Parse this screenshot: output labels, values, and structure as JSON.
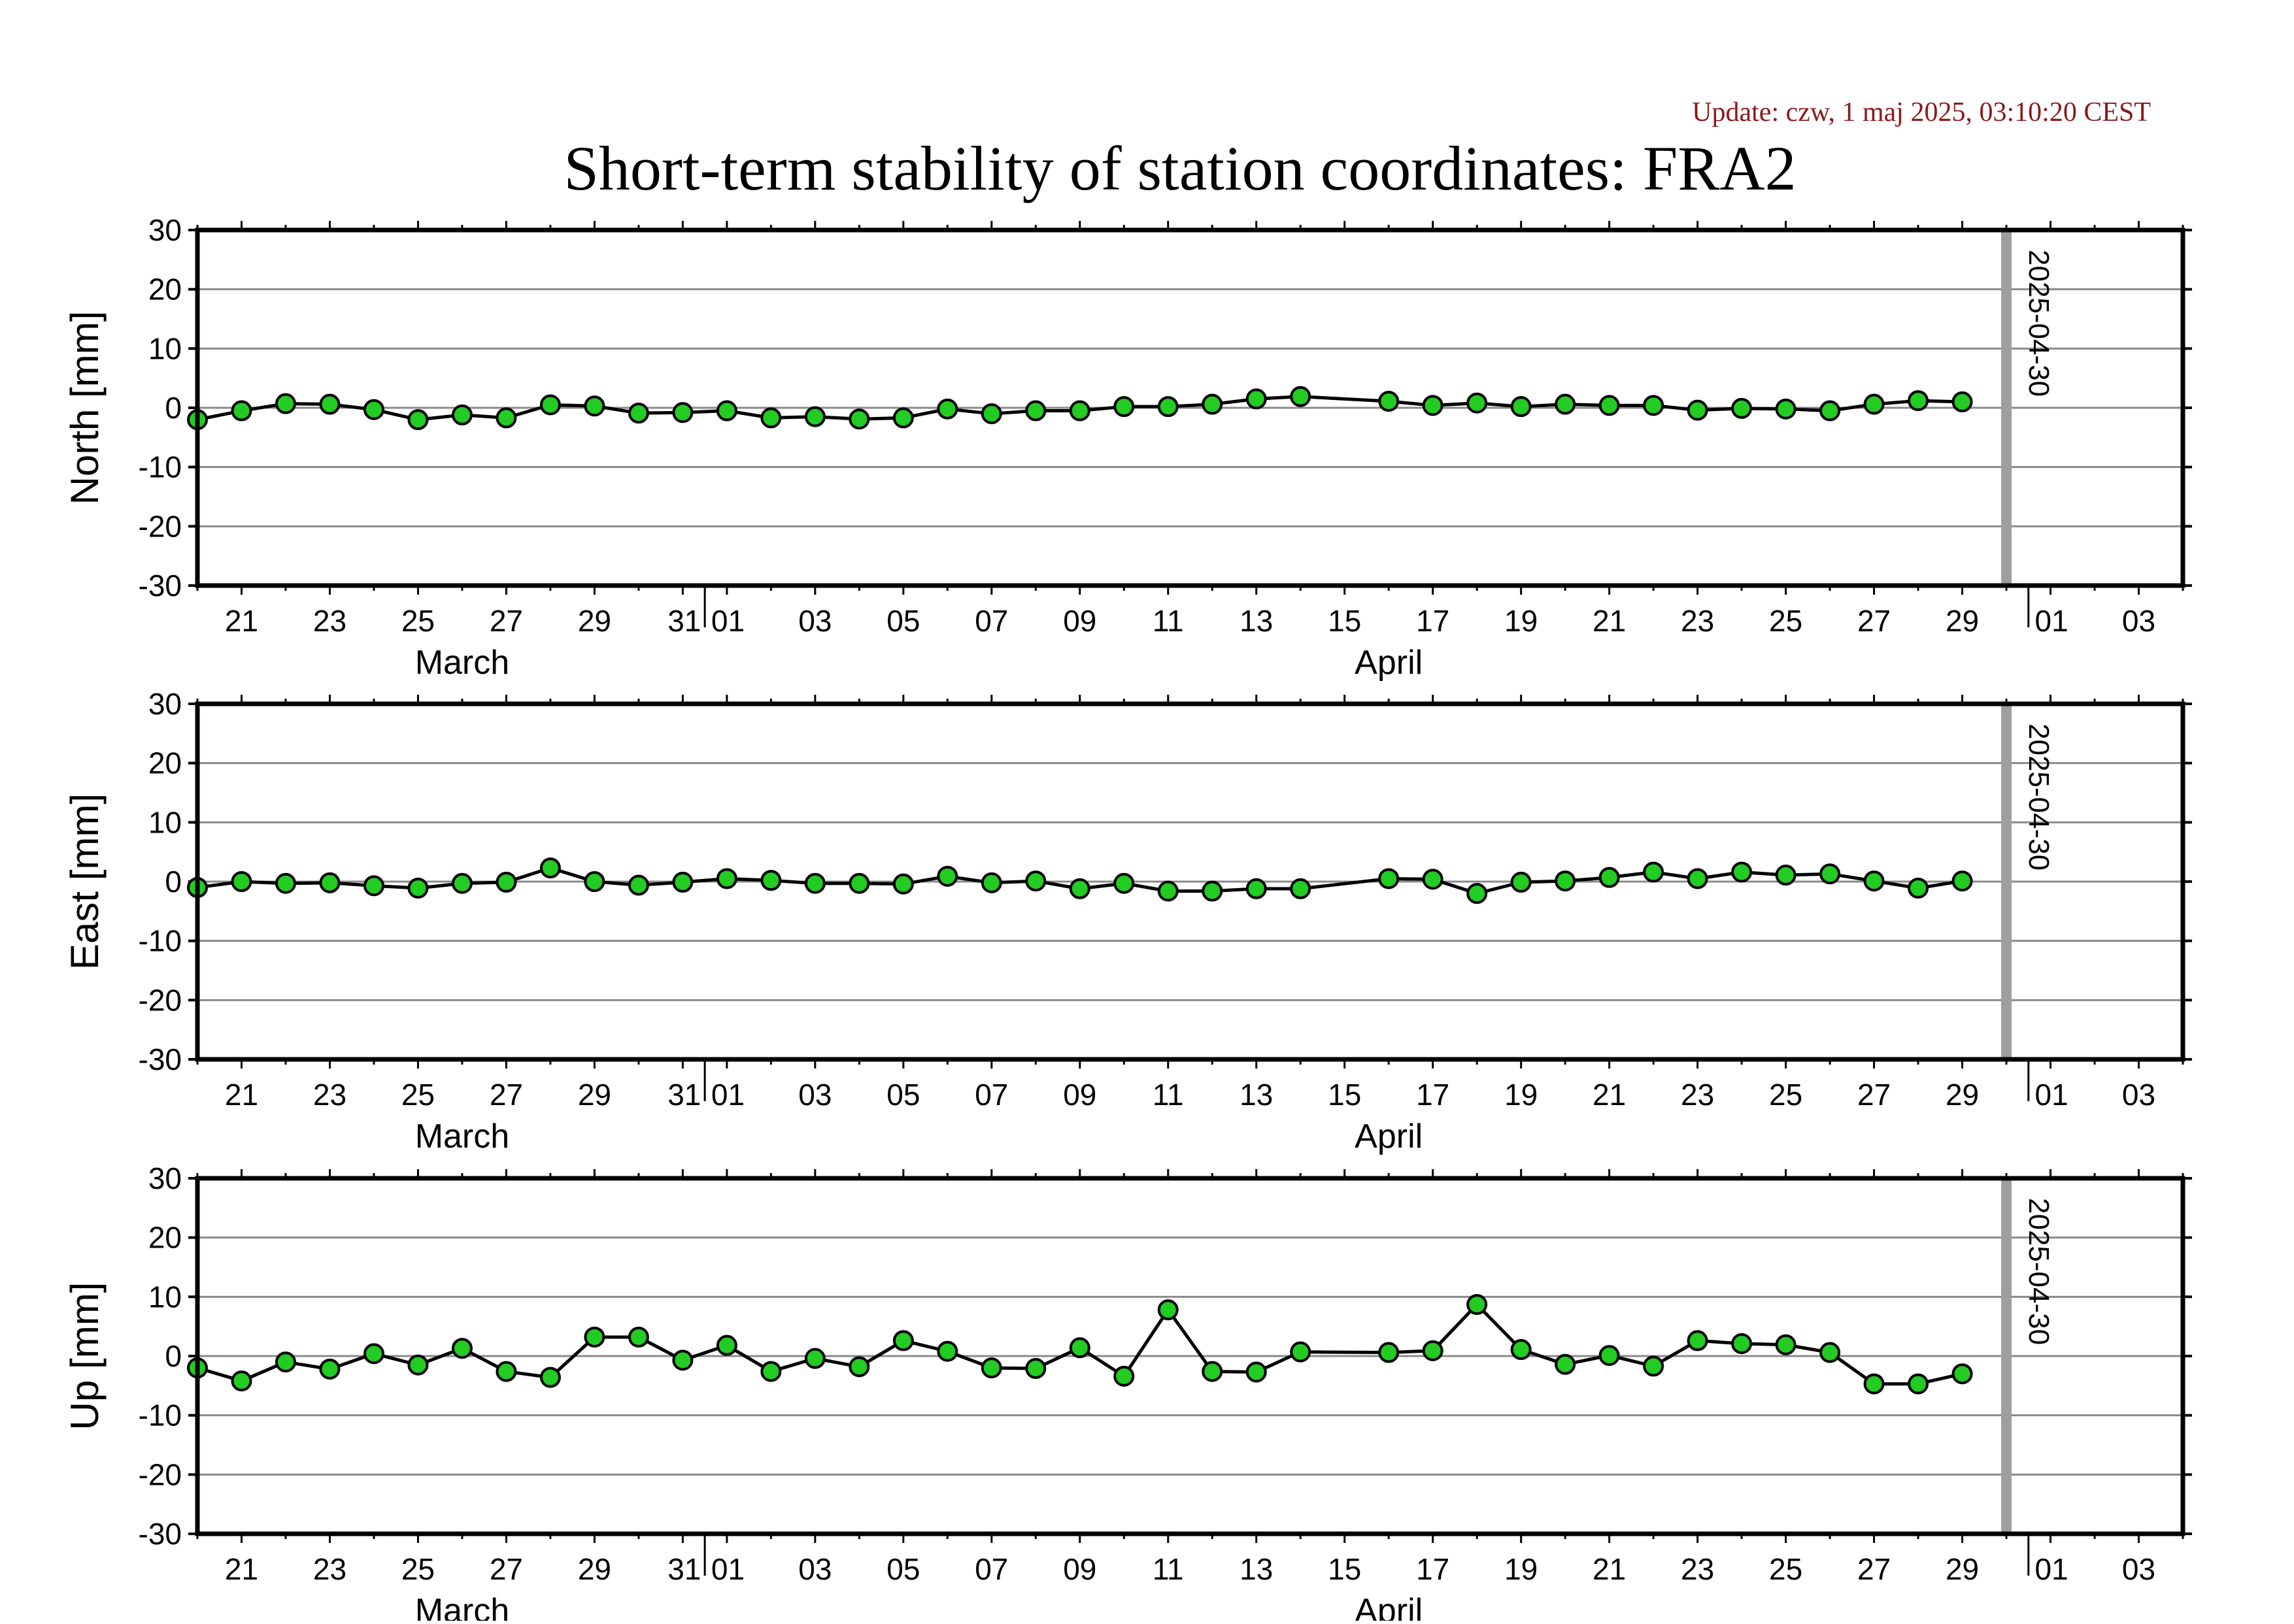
{
  "header": {
    "update_text": "Update: czw, 1 maj 2025, 03:10:20 CEST",
    "title": "Short-term stability of station coordinates: FRA2",
    "update_color": "#8b1a1a"
  },
  "chart_data": [
    {
      "type": "line",
      "ylabel": "North [mm]",
      "ylim": [
        -30,
        30
      ],
      "yticks": [
        -30,
        -20,
        -10,
        0,
        10,
        20,
        30
      ],
      "xlim": [
        "2025-03-20",
        "2025-05-04"
      ],
      "xtick_labels": [
        "21",
        "23",
        "25",
        "27",
        "29",
        "31",
        "01",
        "03",
        "05",
        "07",
        "09",
        "11",
        "13",
        "15",
        "17",
        "19",
        "21",
        "23",
        "25",
        "27",
        "29",
        "01",
        "03"
      ],
      "month_labels": [
        "March",
        "April"
      ],
      "marker_line": {
        "date": "2025-04-30",
        "label": "2025-04-30",
        "color": "#9e9e9e"
      },
      "grid": true,
      "marker_color": "#22cc22",
      "x": [
        "2025-03-20",
        "2025-03-21",
        "2025-03-22",
        "2025-03-23",
        "2025-03-24",
        "2025-03-25",
        "2025-03-26",
        "2025-03-27",
        "2025-03-28",
        "2025-03-29",
        "2025-03-30",
        "2025-03-31",
        "2025-04-01",
        "2025-04-02",
        "2025-04-03",
        "2025-04-04",
        "2025-04-05",
        "2025-04-06",
        "2025-04-07",
        "2025-04-08",
        "2025-04-09",
        "2025-04-10",
        "2025-04-11",
        "2025-04-12",
        "2025-04-13",
        "2025-04-14",
        "2025-04-16",
        "2025-04-17",
        "2025-04-18",
        "2025-04-19",
        "2025-04-20",
        "2025-04-21",
        "2025-04-22",
        "2025-04-23",
        "2025-04-24",
        "2025-04-25",
        "2025-04-26",
        "2025-04-27",
        "2025-04-28",
        "2025-04-29"
      ],
      "values": [
        -2.0,
        -0.5,
        0.7,
        0.6,
        -0.3,
        -2.0,
        -1.2,
        -1.7,
        0.5,
        0.3,
        -0.9,
        -0.8,
        -0.5,
        -1.7,
        -1.5,
        -1.9,
        -1.7,
        -0.2,
        -1.0,
        -0.5,
        -0.5,
        0.2,
        0.2,
        0.6,
        1.5,
        1.9,
        1.1,
        0.4,
        0.8,
        0.2,
        0.6,
        0.4,
        0.4,
        -0.4,
        -0.1,
        -0.2,
        -0.5,
        0.6,
        1.2,
        1.0
      ]
    },
    {
      "type": "line",
      "ylabel": "East [mm]",
      "ylim": [
        -30,
        30
      ],
      "yticks": [
        -30,
        -20,
        -10,
        0,
        10,
        20,
        30
      ],
      "xlim": [
        "2025-03-20",
        "2025-05-04"
      ],
      "xtick_labels": [
        "21",
        "23",
        "25",
        "27",
        "29",
        "31",
        "01",
        "03",
        "05",
        "07",
        "09",
        "11",
        "13",
        "15",
        "17",
        "19",
        "21",
        "23",
        "25",
        "27",
        "29",
        "01",
        "03"
      ],
      "month_labels": [
        "March",
        "April"
      ],
      "marker_line": {
        "date": "2025-04-30",
        "label": "2025-04-30",
        "color": "#9e9e9e"
      },
      "grid": true,
      "marker_color": "#22cc22",
      "x": [
        "2025-03-20",
        "2025-03-21",
        "2025-03-22",
        "2025-03-23",
        "2025-03-24",
        "2025-03-25",
        "2025-03-26",
        "2025-03-27",
        "2025-03-28",
        "2025-03-29",
        "2025-03-30",
        "2025-03-31",
        "2025-04-01",
        "2025-04-02",
        "2025-04-03",
        "2025-04-04",
        "2025-04-05",
        "2025-04-06",
        "2025-04-07",
        "2025-04-08",
        "2025-04-09",
        "2025-04-10",
        "2025-04-11",
        "2025-04-12",
        "2025-04-13",
        "2025-04-14",
        "2025-04-16",
        "2025-04-17",
        "2025-04-18",
        "2025-04-19",
        "2025-04-20",
        "2025-04-21",
        "2025-04-22",
        "2025-04-23",
        "2025-04-24",
        "2025-04-25",
        "2025-04-26",
        "2025-04-27",
        "2025-04-28",
        "2025-04-29"
      ],
      "values": [
        -1.0,
        0.0,
        -0.3,
        -0.2,
        -0.7,
        -1.1,
        -0.3,
        -0.1,
        2.3,
        0.0,
        -0.6,
        -0.1,
        0.5,
        0.2,
        -0.3,
        -0.3,
        -0.4,
        0.9,
        -0.2,
        0.1,
        -1.2,
        -0.3,
        -1.6,
        -1.6,
        -1.2,
        -1.2,
        0.5,
        0.4,
        -2.0,
        -0.1,
        0.1,
        0.7,
        1.6,
        0.5,
        1.6,
        1.1,
        1.3,
        0.1,
        -1.1,
        0.1
      ]
    },
    {
      "type": "line",
      "ylabel": "Up [mm]",
      "ylim": [
        -30,
        30
      ],
      "yticks": [
        -30,
        -20,
        -10,
        0,
        10,
        20,
        30
      ],
      "xlim": [
        "2025-03-20",
        "2025-05-04"
      ],
      "xtick_labels": [
        "21",
        "23",
        "25",
        "27",
        "29",
        "31",
        "01",
        "03",
        "05",
        "07",
        "09",
        "11",
        "13",
        "15",
        "17",
        "19",
        "21",
        "23",
        "25",
        "27",
        "29",
        "01",
        "03"
      ],
      "month_labels": [
        "March",
        "April"
      ],
      "marker_line": {
        "date": "2025-04-30",
        "label": "2025-04-30",
        "color": "#9e9e9e"
      },
      "grid": true,
      "marker_color": "#22cc22",
      "x": [
        "2025-03-20",
        "2025-03-21",
        "2025-03-22",
        "2025-03-23",
        "2025-03-24",
        "2025-03-25",
        "2025-03-26",
        "2025-03-27",
        "2025-03-28",
        "2025-03-29",
        "2025-03-30",
        "2025-03-31",
        "2025-04-01",
        "2025-04-02",
        "2025-04-03",
        "2025-04-04",
        "2025-04-05",
        "2025-04-06",
        "2025-04-07",
        "2025-04-08",
        "2025-04-09",
        "2025-04-10",
        "2025-04-11",
        "2025-04-12",
        "2025-04-13",
        "2025-04-14",
        "2025-04-16",
        "2025-04-17",
        "2025-04-18",
        "2025-04-19",
        "2025-04-20",
        "2025-04-21",
        "2025-04-22",
        "2025-04-23",
        "2025-04-24",
        "2025-04-25",
        "2025-04-26",
        "2025-04-27",
        "2025-04-28",
        "2025-04-29"
      ],
      "values": [
        -2.0,
        -4.2,
        -1.0,
        -2.2,
        0.4,
        -1.5,
        1.3,
        -2.6,
        -3.6,
        3.2,
        3.2,
        -0.7,
        1.8,
        -2.6,
        -0.4,
        -1.8,
        2.6,
        0.8,
        -2.0,
        -2.1,
        1.4,
        -3.4,
        7.8,
        -2.6,
        -2.7,
        0.7,
        0.6,
        0.9,
        8.7,
        1.1,
        -1.4,
        0.1,
        -1.7,
        2.6,
        2.1,
        1.9,
        0.6,
        -4.7,
        -4.7,
        -3.0
      ]
    }
  ]
}
